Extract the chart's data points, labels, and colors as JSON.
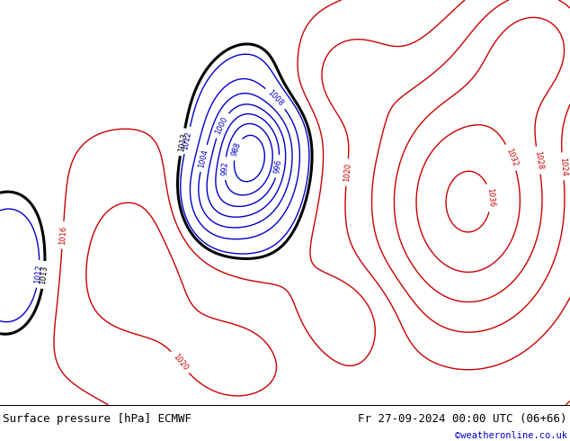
{
  "title_left": "Surface pressure [hPa] ECMWF",
  "title_right": "Fr 27-09-2024 00:00 UTC (06+66)",
  "credit": "©weatheronline.co.uk",
  "credit_color": "#0000cc",
  "ocean_color": "#d0d0d0",
  "land_color": "#b8d8a8",
  "footer_fontsize": 9,
  "isobar_1013_color": "#000000",
  "isobar_low_color": "#0000cc",
  "isobar_high_color": "#cc0000",
  "fig_width": 6.34,
  "fig_height": 4.9,
  "dpi": 100,
  "extent": [
    -40,
    55,
    27,
    77
  ]
}
